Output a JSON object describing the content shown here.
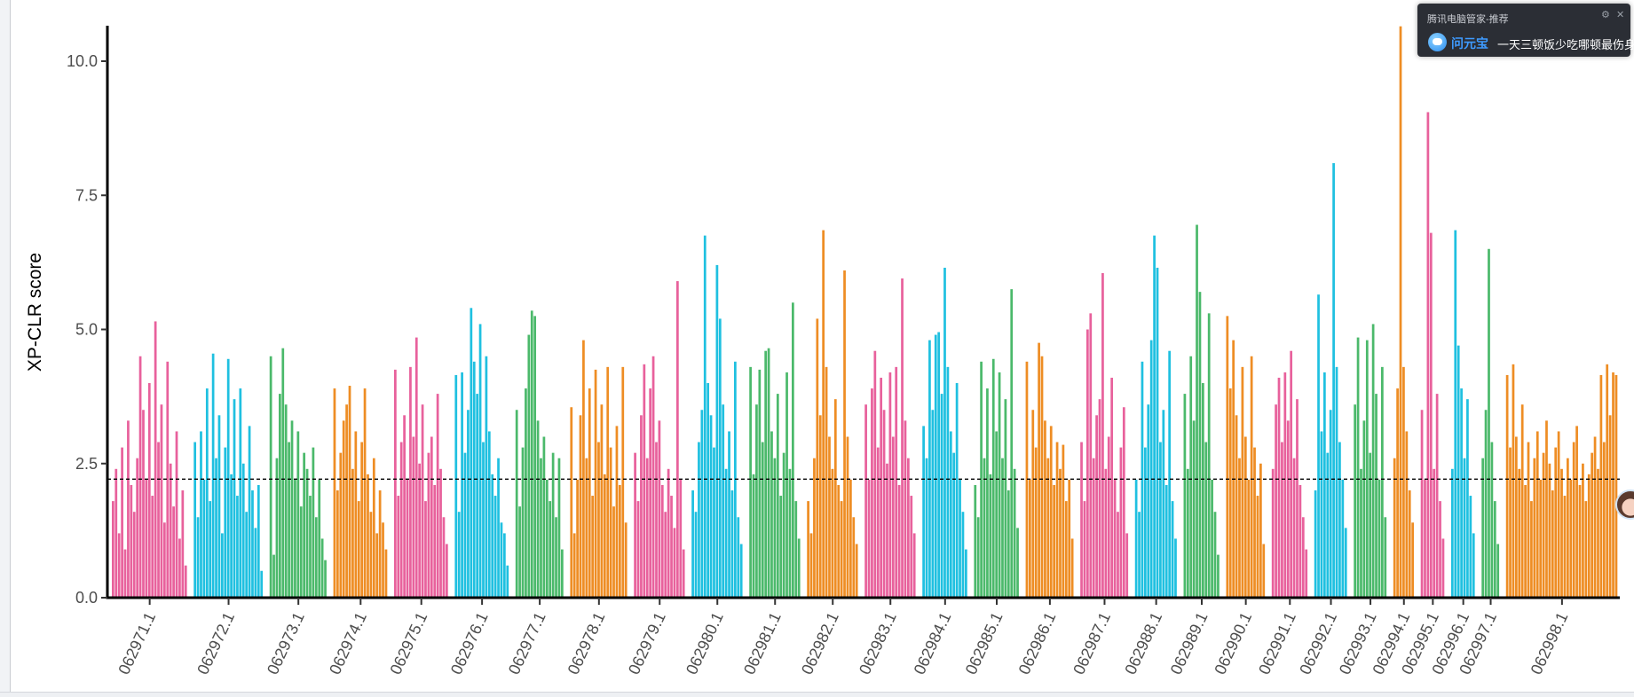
{
  "chart_data": {
    "type": "bar",
    "ylabel": "XP-CLR score",
    "xlabel": "",
    "ylim": [
      0,
      10.7
    ],
    "yticks": [
      "0.0",
      "2.5",
      "5.0",
      "7.5",
      "10.0"
    ],
    "ytick_values": [
      0,
      2.5,
      5,
      7.5,
      10
    ],
    "threshold": 2.21,
    "threshold_style": "dashed",
    "grid": false,
    "legend": "none",
    "colors": [
      "#E8619C",
      "#1FC0E0",
      "#4BB96B",
      "#EE8D24"
    ],
    "chromosomes": [
      {
        "label": "062971.1",
        "values": [
          1.8,
          2.4,
          1.2,
          2.8,
          0.9,
          3.3,
          2.1,
          1.6,
          2.6,
          4.5,
          3.5,
          2.2,
          4.0,
          1.9,
          5.15,
          2.9,
          3.6,
          1.4,
          4.4,
          2.5,
          1.7,
          3.1,
          1.1,
          2.0,
          0.6
        ]
      },
      {
        "label": "062972.1",
        "values": [
          2.9,
          1.5,
          3.1,
          2.2,
          3.9,
          1.8,
          4.55,
          2.6,
          3.4,
          1.2,
          2.8,
          4.45,
          2.3,
          3.7,
          1.9,
          3.9,
          2.5,
          1.6,
          3.2,
          2.0,
          1.3,
          2.1,
          0.5
        ]
      },
      {
        "label": "062973.1",
        "values": [
          4.5,
          0.8,
          2.6,
          3.8,
          4.65,
          3.6,
          2.9,
          3.3,
          2.2,
          3.1,
          1.7,
          2.7,
          2.4,
          1.9,
          2.8,
          1.5,
          2.2,
          1.1,
          0.7
        ]
      },
      {
        "label": "062974.1",
        "values": [
          3.9,
          2.0,
          2.7,
          3.3,
          3.6,
          3.95,
          2.4,
          3.1,
          1.8,
          2.9,
          3.9,
          2.3,
          1.6,
          2.6,
          1.2,
          2.0,
          1.4,
          0.9
        ]
      },
      {
        "label": "062975.1",
        "values": [
          4.25,
          1.9,
          2.9,
          3.4,
          2.2,
          4.3,
          3.0,
          4.85,
          2.5,
          3.6,
          1.8,
          2.7,
          3.0,
          2.1,
          3.8,
          2.4,
          1.5,
          1.0
        ]
      },
      {
        "label": "062976.1",
        "values": [
          4.15,
          1.6,
          4.2,
          2.7,
          3.5,
          5.4,
          4.4,
          3.8,
          5.1,
          2.9,
          4.5,
          3.1,
          2.3,
          1.9,
          2.6,
          1.4,
          1.2,
          0.6
        ]
      },
      {
        "label": "062977.1",
        "values": [
          3.5,
          1.7,
          2.8,
          3.9,
          4.9,
          5.35,
          5.25,
          3.3,
          2.6,
          3.0,
          2.2,
          1.8,
          2.7,
          1.5,
          2.6,
          0.9
        ]
      },
      {
        "label": "062978.1",
        "values": [
          3.55,
          1.2,
          2.2,
          3.4,
          4.8,
          2.6,
          3.9,
          1.9,
          4.25,
          2.9,
          3.6,
          2.3,
          4.3,
          2.8,
          1.7,
          3.2,
          2.1,
          4.3,
          1.4
        ]
      },
      {
        "label": "062979.1",
        "values": [
          2.7,
          1.8,
          3.4,
          4.35,
          2.6,
          3.9,
          4.5,
          2.9,
          3.3,
          2.1,
          1.6,
          2.4,
          1.9,
          1.3,
          5.9,
          2.2,
          0.9
        ]
      },
      {
        "label": "062980.1",
        "values": [
          2.0,
          1.6,
          2.9,
          3.5,
          6.75,
          4.0,
          3.4,
          2.8,
          6.2,
          5.2,
          3.6,
          2.4,
          3.1,
          2.0,
          4.4,
          1.5,
          1.0
        ]
      },
      {
        "label": "062981.1",
        "values": [
          4.3,
          2.3,
          3.6,
          4.25,
          2.9,
          4.6,
          4.65,
          3.1,
          2.6,
          3.8,
          1.9,
          2.7,
          4.2,
          2.4,
          5.5,
          1.8,
          1.1
        ]
      },
      {
        "label": "062982.1",
        "values": [
          1.8,
          1.2,
          2.6,
          5.2,
          3.4,
          6.85,
          4.3,
          3.0,
          2.4,
          3.7,
          2.1,
          1.8,
          6.1,
          3.0,
          2.2,
          1.5,
          1.0
        ]
      },
      {
        "label": "062983.1",
        "values": [
          3.6,
          2.2,
          3.9,
          4.6,
          2.8,
          4.1,
          3.5,
          2.5,
          4.2,
          3.0,
          4.3,
          2.1,
          5.95,
          3.3,
          2.6,
          1.9,
          1.2
        ]
      },
      {
        "label": "062984.1",
        "values": [
          3.2,
          2.6,
          4.8,
          3.5,
          4.9,
          4.95,
          3.8,
          6.15,
          4.3,
          3.1,
          2.7,
          4.0,
          2.2,
          1.6,
          0.9
        ]
      },
      {
        "label": "062985.1",
        "values": [
          2.1,
          1.5,
          4.4,
          2.6,
          3.9,
          2.3,
          4.45,
          3.1,
          4.2,
          2.6,
          3.7,
          2.0,
          5.75,
          2.4,
          1.3
        ]
      },
      {
        "label": "062986.1",
        "values": [
          4.4,
          2.2,
          3.5,
          2.8,
          4.75,
          4.5,
          3.3,
          2.6,
          3.2,
          2.1,
          2.9,
          2.4,
          2.85,
          1.8,
          2.2,
          1.1
        ]
      },
      {
        "label": "062987.1",
        "values": [
          2.9,
          1.8,
          5.0,
          5.3,
          2.6,
          3.4,
          3.7,
          6.05,
          2.4,
          3.0,
          4.1,
          2.2,
          1.6,
          2.8,
          3.55,
          1.2
        ]
      },
      {
        "label": "062988.1",
        "values": [
          2.2,
          1.6,
          4.4,
          2.8,
          3.6,
          4.8,
          6.75,
          6.15,
          2.9,
          3.5,
          2.1,
          4.6,
          1.8,
          1.1
        ]
      },
      {
        "label": "062989.1",
        "values": [
          3.8,
          2.4,
          4.5,
          3.3,
          6.95,
          5.7,
          4.0,
          2.9,
          5.3,
          2.2,
          1.6,
          0.8
        ]
      },
      {
        "label": "062990.1",
        "values": [
          5.25,
          3.9,
          4.8,
          3.4,
          2.6,
          4.3,
          3.0,
          2.2,
          4.5,
          2.8,
          1.9,
          2.5,
          1.0
        ]
      },
      {
        "label": "062991.1",
        "values": [
          2.4,
          3.6,
          4.1,
          2.9,
          4.2,
          3.3,
          4.6,
          2.6,
          3.7,
          2.1,
          1.5,
          0.9
        ]
      },
      {
        "label": "062992.1",
        "values": [
          2.0,
          5.65,
          3.1,
          4.2,
          2.7,
          3.5,
          8.1,
          4.3,
          2.9,
          2.2,
          1.3
        ]
      },
      {
        "label": "062993.1",
        "values": [
          3.6,
          4.85,
          2.4,
          3.3,
          4.8,
          2.7,
          5.1,
          3.8,
          2.2,
          4.3,
          1.5
        ]
      },
      {
        "label": "062994.1",
        "values": [
          2.6,
          3.9,
          10.65,
          4.3,
          3.1,
          2.0,
          1.4
        ]
      },
      {
        "label": "062995.1",
        "values": [
          3.5,
          2.2,
          9.05,
          6.8,
          2.4,
          3.8,
          1.8,
          1.1
        ]
      },
      {
        "label": "062996.1",
        "values": [
          2.4,
          6.85,
          4.7,
          3.9,
          2.6,
          3.7,
          1.9,
          1.2
        ]
      },
      {
        "label": "062997.1",
        "values": [
          2.6,
          3.5,
          6.5,
          2.9,
          1.8,
          1.0
        ]
      },
      {
        "label": "062998.1",
        "values": [
          4.15,
          2.8,
          4.35,
          3.0,
          2.4,
          3.6,
          2.1,
          2.9,
          1.8,
          2.6,
          3.1,
          2.2,
          2.7,
          3.3,
          2.5,
          2.0,
          2.8,
          3.1,
          2.4,
          1.9,
          2.6,
          2.2,
          2.9,
          3.2,
          2.1,
          2.5,
          1.8,
          2.3,
          2.7,
          3.0,
          2.4,
          4.15,
          2.9,
          4.35,
          3.4,
          4.2,
          4.15
        ]
      }
    ]
  },
  "notification": {
    "title": "腾讯电脑管家-推荐",
    "brand": "问元宝",
    "message": "一天三顿饭少吃哪顿最伤身",
    "settings_icon": "gear-icon",
    "close_icon": "close-icon"
  }
}
